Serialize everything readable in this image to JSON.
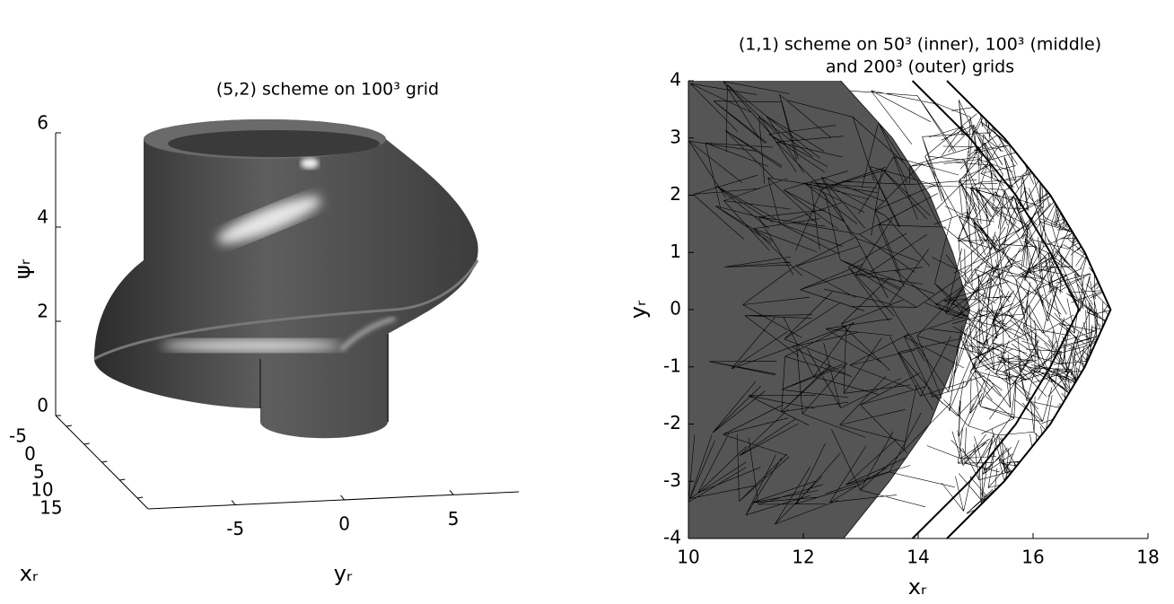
{
  "chart_data": [
    {
      "type": "surface3d",
      "title": "(5,2) scheme on 100³ grid",
      "xlabel": "xᵣ",
      "ylabel": "yᵣ",
      "zlabel": "ψᵣ",
      "xlim": [
        -8,
        18
      ],
      "ylim": [
        -9,
        8
      ],
      "zlim": [
        0,
        6
      ],
      "xticks": [
        -5,
        0,
        5,
        10,
        15
      ],
      "yticks": [
        -5,
        0,
        5
      ],
      "zticks": [
        0,
        2,
        4,
        6
      ]
    },
    {
      "type": "mesh",
      "title": [
        "(1,1) scheme on 50³ (inner), 100³ (middle)",
        "and 200³ (outer) grids"
      ],
      "xlabel": "xᵣ",
      "ylabel": "yᵣ",
      "xlim": [
        10,
        18
      ],
      "ylim": [
        -4,
        4
      ],
      "xticks": [
        10,
        12,
        14,
        16,
        18
      ],
      "yticks": [
        -4,
        -3,
        -2,
        -1,
        0,
        1,
        2,
        3,
        4
      ],
      "series": [
        {
          "color": "#555555",
          "fill": true,
          "y": [
            4,
            3,
            2,
            1,
            0,
            -1,
            -2,
            -3,
            -4
          ],
          "x": [
            12.65,
            13.55,
            14.2,
            14.6,
            14.9,
            14.6,
            14.2,
            13.5,
            12.7
          ]
        },
        {
          "color": "#000000",
          "fill": false,
          "y": [
            4,
            3,
            2,
            1,
            0,
            -1,
            -2,
            -3,
            -4
          ],
          "x": [
            13.9,
            14.9,
            15.7,
            16.3,
            16.8,
            16.3,
            15.7,
            14.9,
            13.9
          ]
        },
        {
          "color": "#000000",
          "fill": false,
          "y": [
            4,
            3,
            2,
            1,
            0,
            -1,
            -2,
            -3,
            -4
          ],
          "x": [
            14.5,
            15.5,
            16.3,
            16.9,
            17.35,
            16.9,
            16.3,
            15.5,
            14.5
          ]
        }
      ]
    }
  ]
}
